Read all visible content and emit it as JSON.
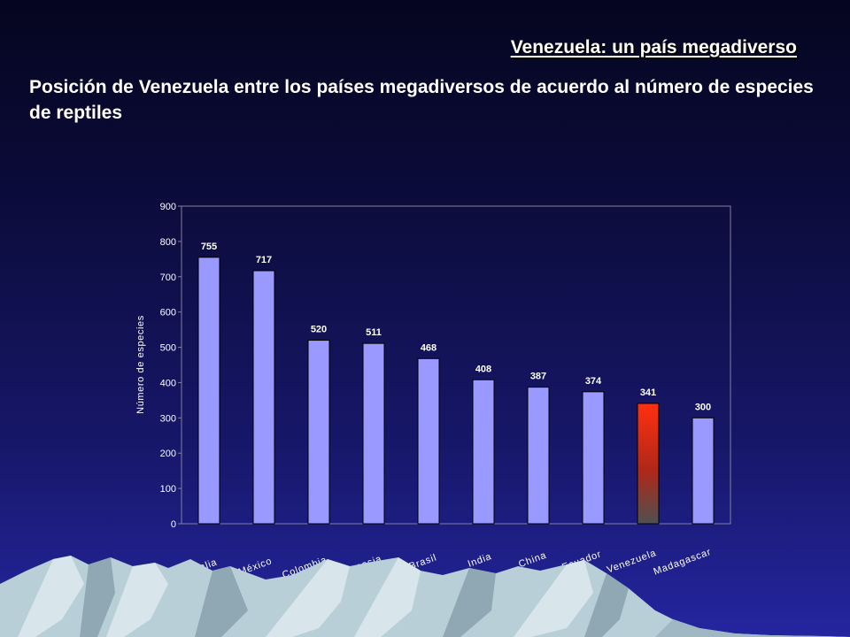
{
  "slide": {
    "title": "Venezuela:  un país megadiverso",
    "subtitle": "Posición de Venezuela entre los países megadiversos de acuerdo al número de especies de reptiles"
  },
  "colors": {
    "bar": "#9999ff",
    "highlight_top": "#ff3010",
    "highlight_bottom": "#505050",
    "text": "#ffffff"
  },
  "chart_data": {
    "type": "bar",
    "categories": [
      "Australia",
      "México",
      "Colombia",
      "Indonesia",
      "Brasil",
      "India",
      "China",
      "Ecuador",
      "Venezuela",
      "Madagascar"
    ],
    "values": [
      755,
      717,
      520,
      511,
      468,
      408,
      387,
      374,
      341,
      300
    ],
    "highlight": "Venezuela",
    "ylabel": "Número  de especies",
    "xlabel": "",
    "ylim": [
      0,
      900
    ],
    "yticks": [
      0,
      100,
      200,
      300,
      400,
      500,
      600,
      700,
      800,
      900
    ],
    "data_labels": true,
    "grid": false,
    "legend": "none"
  }
}
